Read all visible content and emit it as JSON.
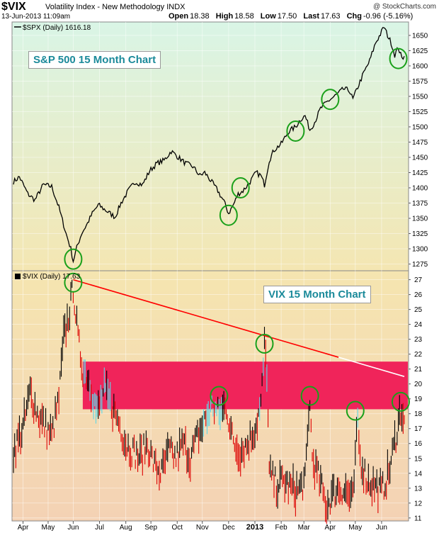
{
  "header": {
    "symbol": "$VIX",
    "name": "Volatility Index - New Methodology",
    "exchange": "INDX",
    "watermark": "@ StockCharts.com",
    "date": "13-Jun-2013 11:09am",
    "quote": {
      "open_label": "Open",
      "open": "18.38",
      "high_label": "High",
      "high": "18.58",
      "low_label": "Low",
      "low": "17.50",
      "last_label": "Last",
      "last": "17.63",
      "chg_label": "Chg",
      "chg": "-0.96 (-5.16%)"
    }
  },
  "annotations": {
    "spx_box": "S&P 500 15 Month Chart",
    "vix_box": "VIX 15 Month Chart"
  },
  "colors": {
    "line": "#000000",
    "up_bar": "#000000",
    "down_bar": "#dd0000",
    "band": "#f0245a",
    "band_bar": "#5ed8e8",
    "trendline": "#ff0000",
    "trendline_ext": "#ffffff",
    "circle": "#1aa01a",
    "annotation_text": "#1b8a9a"
  },
  "chart_data": [
    {
      "type": "line",
      "legend": "$SPX (Daily) 1616.18",
      "y_ticks": [
        1275,
        1300,
        1325,
        1350,
        1375,
        1400,
        1425,
        1450,
        1475,
        1500,
        1525,
        1550,
        1575,
        1600,
        1625,
        1650
      ],
      "ylim": [
        1264,
        1672
      ],
      "x_ticks": [
        "Apr",
        "May",
        "Jun",
        "Jul",
        "Aug",
        "Sep",
        "Oct",
        "Nov",
        "Dec",
        "2013",
        "Feb",
        "Mar",
        "Apr",
        "May",
        "Jun"
      ],
      "keypoints": [
        {
          "i": 0,
          "v": 1410
        },
        {
          "i": 5,
          "v": 1418
        },
        {
          "i": 12,
          "v": 1390
        },
        {
          "i": 18,
          "v": 1380
        },
        {
          "i": 25,
          "v": 1405
        },
        {
          "i": 32,
          "v": 1402
        },
        {
          "i": 38,
          "v": 1368
        },
        {
          "i": 44,
          "v": 1325
        },
        {
          "i": 48,
          "v": 1300
        },
        {
          "i": 50,
          "v": 1280
        },
        {
          "i": 53,
          "v": 1302
        },
        {
          "i": 57,
          "v": 1325
        },
        {
          "i": 62,
          "v": 1342
        },
        {
          "i": 66,
          "v": 1358
        },
        {
          "i": 71,
          "v": 1372
        },
        {
          "i": 78,
          "v": 1362
        },
        {
          "i": 85,
          "v": 1352
        },
        {
          "i": 90,
          "v": 1375
        },
        {
          "i": 96,
          "v": 1395
        },
        {
          "i": 102,
          "v": 1410
        },
        {
          "i": 108,
          "v": 1405
        },
        {
          "i": 114,
          "v": 1428
        },
        {
          "i": 120,
          "v": 1440
        },
        {
          "i": 126,
          "v": 1445
        },
        {
          "i": 132,
          "v": 1460
        },
        {
          "i": 138,
          "v": 1450
        },
        {
          "i": 144,
          "v": 1440
        },
        {
          "i": 150,
          "v": 1435
        },
        {
          "i": 156,
          "v": 1420
        },
        {
          "i": 160,
          "v": 1425
        },
        {
          "i": 165,
          "v": 1412
        },
        {
          "i": 171,
          "v": 1395
        },
        {
          "i": 176,
          "v": 1378
        },
        {
          "i": 180,
          "v": 1358
        },
        {
          "i": 184,
          "v": 1372
        },
        {
          "i": 188,
          "v": 1390
        },
        {
          "i": 192,
          "v": 1395
        },
        {
          "i": 198,
          "v": 1410
        },
        {
          "i": 203,
          "v": 1425
        },
        {
          "i": 207,
          "v": 1420
        },
        {
          "i": 210,
          "v": 1405
        },
        {
          "i": 214,
          "v": 1445
        },
        {
          "i": 218,
          "v": 1462
        },
        {
          "i": 224,
          "v": 1472
        },
        {
          "i": 230,
          "v": 1492
        },
        {
          "i": 236,
          "v": 1500
        },
        {
          "i": 240,
          "v": 1512
        },
        {
          "i": 244,
          "v": 1518
        },
        {
          "i": 248,
          "v": 1495
        },
        {
          "i": 252,
          "v": 1508
        },
        {
          "i": 257,
          "v": 1530
        },
        {
          "i": 263,
          "v": 1542
        },
        {
          "i": 270,
          "v": 1552
        },
        {
          "i": 276,
          "v": 1562
        },
        {
          "i": 281,
          "v": 1560
        },
        {
          "i": 284,
          "v": 1545
        },
        {
          "i": 288,
          "v": 1565
        },
        {
          "i": 293,
          "v": 1588
        },
        {
          "i": 298,
          "v": 1608
        },
        {
          "i": 303,
          "v": 1638
        },
        {
          "i": 307,
          "v": 1652
        },
        {
          "i": 310,
          "v": 1664
        },
        {
          "i": 313,
          "v": 1650
        },
        {
          "i": 316,
          "v": 1638
        },
        {
          "i": 319,
          "v": 1618
        },
        {
          "i": 322,
          "v": 1630
        },
        {
          "i": 325,
          "v": 1612
        },
        {
          "i": 327,
          "v": 1616
        }
      ]
    },
    {
      "type": "bar",
      "legend": "$VIX (Daily) 17.63",
      "y_ticks": [
        11,
        12,
        13,
        14,
        15,
        16,
        17,
        18,
        19,
        20,
        21,
        22,
        23,
        24,
        25,
        26,
        27
      ],
      "ylim": [
        10.8,
        27.6
      ],
      "band": [
        18.3,
        21.5
      ],
      "trendline": {
        "from": {
          "i": 50,
          "v": 27.0
        },
        "to": {
          "i": 327,
          "v": 20.5
        },
        "red_until_i": 272
      },
      "keypoints": [
        {
          "i": 0,
          "v": 15.5
        },
        {
          "i": 8,
          "v": 17.0
        },
        {
          "i": 14,
          "v": 19.5
        },
        {
          "i": 20,
          "v": 18.0
        },
        {
          "i": 26,
          "v": 17.2
        },
        {
          "i": 32,
          "v": 16.5
        },
        {
          "i": 38,
          "v": 19.0
        },
        {
          "i": 42,
          "v": 23.0
        },
        {
          "i": 46,
          "v": 24.5
        },
        {
          "i": 50,
          "v": 26.5
        },
        {
          "i": 54,
          "v": 23.0
        },
        {
          "i": 58,
          "v": 21.0
        },
        {
          "i": 62,
          "v": 20.5
        },
        {
          "i": 66,
          "v": 19.5
        },
        {
          "i": 70,
          "v": 18.0
        },
        {
          "i": 76,
          "v": 19.5
        },
        {
          "i": 82,
          "v": 18.5
        },
        {
          "i": 88,
          "v": 17.5
        },
        {
          "i": 94,
          "v": 16.0
        },
        {
          "i": 100,
          "v": 15.5
        },
        {
          "i": 106,
          "v": 15.0
        },
        {
          "i": 112,
          "v": 16.0
        },
        {
          "i": 118,
          "v": 14.5
        },
        {
          "i": 124,
          "v": 14.0
        },
        {
          "i": 130,
          "v": 15.5
        },
        {
          "i": 136,
          "v": 15.0
        },
        {
          "i": 142,
          "v": 16.0
        },
        {
          "i": 148,
          "v": 15.0
        },
        {
          "i": 154,
          "v": 16.5
        },
        {
          "i": 160,
          "v": 17.5
        },
        {
          "i": 166,
          "v": 18.5
        },
        {
          "i": 172,
          "v": 18.0
        },
        {
          "i": 178,
          "v": 18.5
        },
        {
          "i": 184,
          "v": 16.0
        },
        {
          "i": 190,
          "v": 15.5
        },
        {
          "i": 196,
          "v": 16.0
        },
        {
          "i": 202,
          "v": 17.0
        },
        {
          "i": 207,
          "v": 18.5
        },
        {
          "i": 210,
          "v": 22.5
        },
        {
          "i": 212,
          "v": 21.0
        },
        {
          "i": 214,
          "v": 14.0
        },
        {
          "i": 220,
          "v": 13.2
        },
        {
          "i": 226,
          "v": 13.5
        },
        {
          "i": 232,
          "v": 13.0
        },
        {
          "i": 238,
          "v": 12.8
        },
        {
          "i": 244,
          "v": 13.5
        },
        {
          "i": 248,
          "v": 19.0
        },
        {
          "i": 250,
          "v": 15.0
        },
        {
          "i": 256,
          "v": 13.5
        },
        {
          "i": 262,
          "v": 11.8
        },
        {
          "i": 266,
          "v": 12.5
        },
        {
          "i": 272,
          "v": 13.0
        },
        {
          "i": 278,
          "v": 12.8
        },
        {
          "i": 284,
          "v": 12.2
        },
        {
          "i": 288,
          "v": 17.5
        },
        {
          "i": 290,
          "v": 15.0
        },
        {
          "i": 296,
          "v": 13.5
        },
        {
          "i": 302,
          "v": 13.2
        },
        {
          "i": 308,
          "v": 12.8
        },
        {
          "i": 314,
          "v": 14.0
        },
        {
          "i": 320,
          "v": 16.5
        },
        {
          "i": 324,
          "v": 18.3
        },
        {
          "i": 327,
          "v": 17.6
        }
      ]
    }
  ]
}
